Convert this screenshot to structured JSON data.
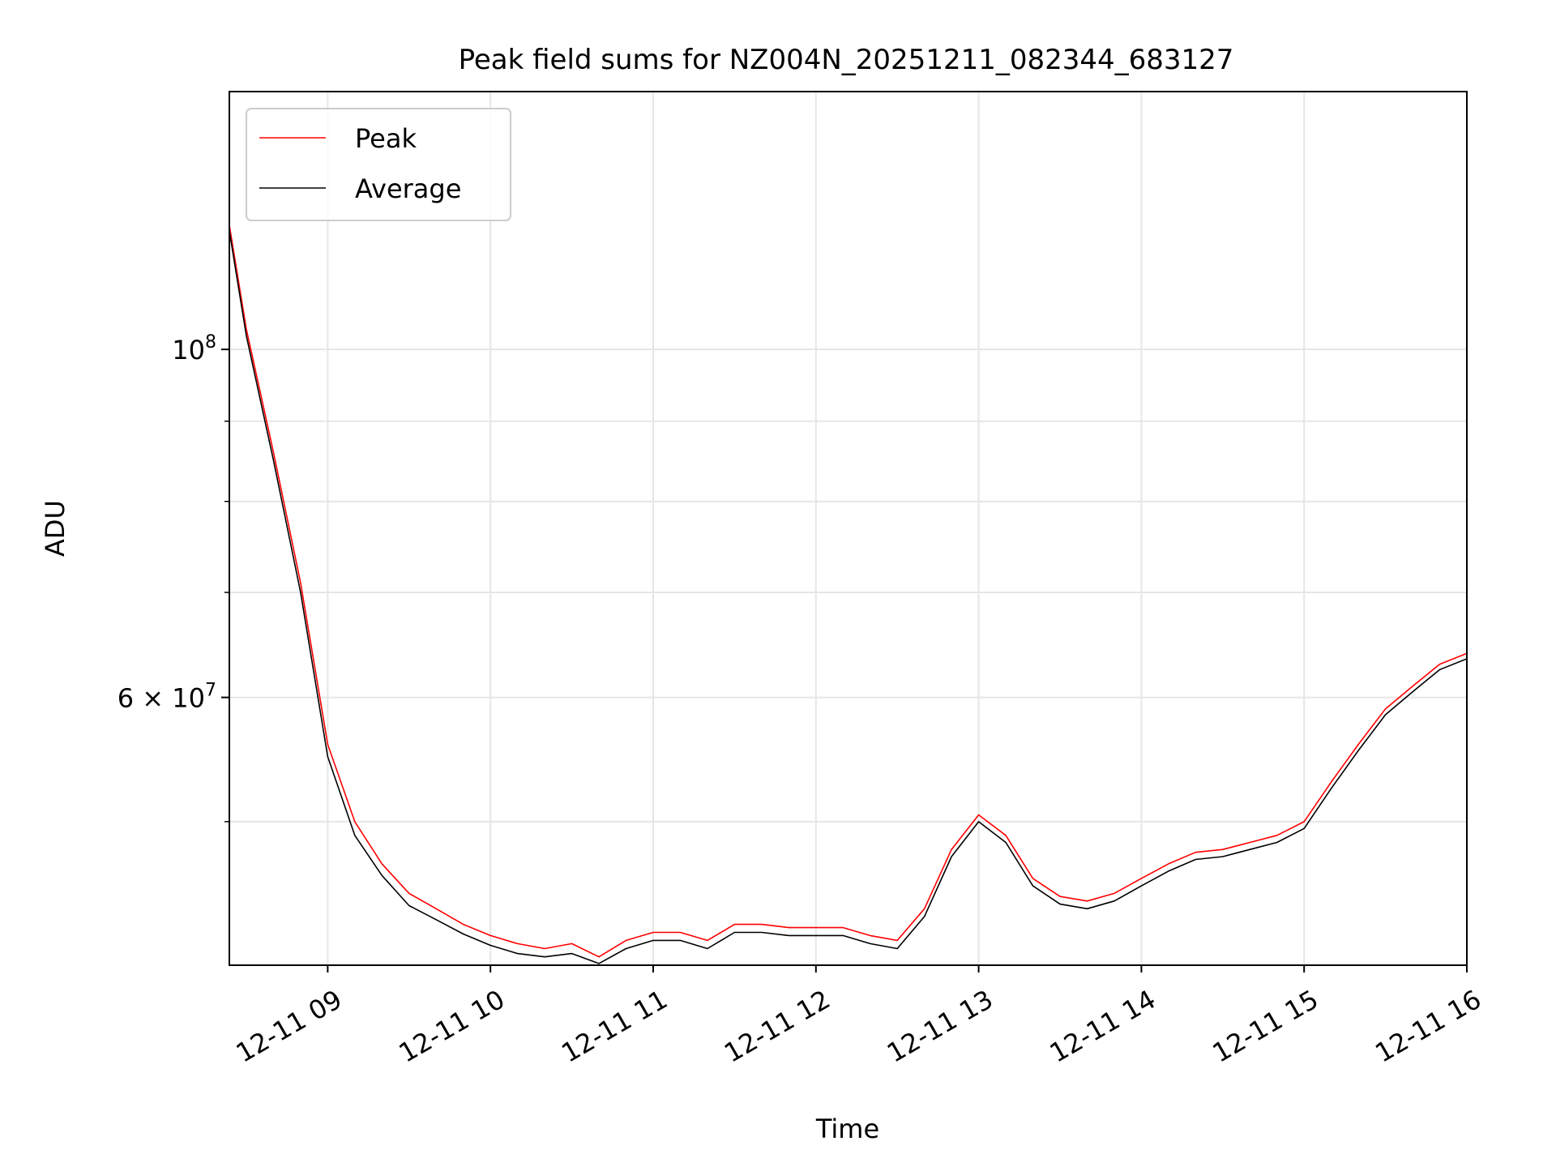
{
  "chart_data": {
    "type": "line",
    "title": "Peak field sums for NZ004N_20251211_082344_683127",
    "xlabel": "Time",
    "ylabel": "ADU",
    "y_scale": "log",
    "ylim": [
      40500000,
      146000000
    ],
    "xlim": [
      "2025-12-11 08:23:44",
      "2025-12-11 16:00:00"
    ],
    "grid": true,
    "legend_position": "top-left",
    "x_ticks": [
      {
        "t": "2025-12-11 09:00",
        "label": "12-11 09"
      },
      {
        "t": "2025-12-11 10:00",
        "label": "12-11 10"
      },
      {
        "t": "2025-12-11 11:00",
        "label": "12-11 11"
      },
      {
        "t": "2025-12-11 12:00",
        "label": "12-11 12"
      },
      {
        "t": "2025-12-11 13:00",
        "label": "12-11 13"
      },
      {
        "t": "2025-12-11 14:00",
        "label": "12-11 14"
      },
      {
        "t": "2025-12-11 15:00",
        "label": "12-11 15"
      },
      {
        "t": "2025-12-11 16:00",
        "label": "12-11 16"
      }
    ],
    "y_major_ticks": [
      {
        "value": 100000000,
        "base": "10",
        "exp": "8"
      },
      {
        "value": 60000000,
        "base": "6 × 10",
        "exp": "7"
      }
    ],
    "y_minor_ticks": [
      50000000,
      70000000,
      80000000,
      90000000
    ],
    "series": [
      {
        "name": "Peak",
        "color": "#ff0000",
        "points": [
          [
            "08:23:44",
            120000000
          ],
          [
            "08:30",
            103000000
          ],
          [
            "08:40",
            86000000
          ],
          [
            "08:50",
            71000000
          ],
          [
            "09:00",
            56000000
          ],
          [
            "09:10",
            50000000
          ],
          [
            "09:20",
            47000000
          ],
          [
            "09:30",
            45000000
          ],
          [
            "09:40",
            44000000
          ],
          [
            "09:50",
            43000000
          ],
          [
            "10:00",
            42300000
          ],
          [
            "10:10",
            41800000
          ],
          [
            "10:20",
            41500000
          ],
          [
            "10:30",
            41800000
          ],
          [
            "10:40",
            41000000
          ],
          [
            "10:50",
            42000000
          ],
          [
            "11:00",
            42500000
          ],
          [
            "11:10",
            42500000
          ],
          [
            "11:20",
            42000000
          ],
          [
            "11:30",
            43000000
          ],
          [
            "11:40",
            43000000
          ],
          [
            "11:50",
            42800000
          ],
          [
            "12:00",
            42800000
          ],
          [
            "12:10",
            42800000
          ],
          [
            "12:20",
            42300000
          ],
          [
            "12:30",
            42000000
          ],
          [
            "12:40",
            44000000
          ],
          [
            "12:50",
            48000000
          ],
          [
            "13:00",
            50500000
          ],
          [
            "13:10",
            49000000
          ],
          [
            "13:20",
            46000000
          ],
          [
            "13:30",
            44800000
          ],
          [
            "13:40",
            44500000
          ],
          [
            "13:50",
            45000000
          ],
          [
            "14:00",
            46000000
          ],
          [
            "14:10",
            47000000
          ],
          [
            "14:20",
            47800000
          ],
          [
            "14:30",
            48000000
          ],
          [
            "14:40",
            48500000
          ],
          [
            "14:50",
            49000000
          ],
          [
            "15:00",
            50000000
          ],
          [
            "15:10",
            53000000
          ],
          [
            "15:20",
            56000000
          ],
          [
            "15:30",
            59000000
          ],
          [
            "15:40",
            61000000
          ],
          [
            "15:50",
            63000000
          ],
          [
            "16:00",
            64000000
          ]
        ]
      },
      {
        "name": "Average",
        "color": "#000000",
        "points": [
          [
            "08:23:44",
            119000000
          ],
          [
            "08:30",
            102000000
          ],
          [
            "08:40",
            85000000
          ],
          [
            "08:50",
            70000000
          ],
          [
            "09:00",
            55000000
          ],
          [
            "09:10",
            49000000
          ],
          [
            "09:20",
            46200000
          ],
          [
            "09:30",
            44200000
          ],
          [
            "09:40",
            43300000
          ],
          [
            "09:50",
            42400000
          ],
          [
            "10:00",
            41700000
          ],
          [
            "10:10",
            41200000
          ],
          [
            "10:20",
            41000000
          ],
          [
            "10:30",
            41200000
          ],
          [
            "10:40",
            40600000
          ],
          [
            "10:50",
            41500000
          ],
          [
            "11:00",
            42000000
          ],
          [
            "11:10",
            42000000
          ],
          [
            "11:20",
            41500000
          ],
          [
            "11:30",
            42500000
          ],
          [
            "11:40",
            42500000
          ],
          [
            "11:50",
            42300000
          ],
          [
            "12:00",
            42300000
          ],
          [
            "12:10",
            42300000
          ],
          [
            "12:20",
            41800000
          ],
          [
            "12:30",
            41500000
          ],
          [
            "12:40",
            43500000
          ],
          [
            "12:50",
            47500000
          ],
          [
            "13:00",
            50000000
          ],
          [
            "13:10",
            48500000
          ],
          [
            "13:20",
            45500000
          ],
          [
            "13:30",
            44300000
          ],
          [
            "13:40",
            44000000
          ],
          [
            "13:50",
            44500000
          ],
          [
            "14:00",
            45500000
          ],
          [
            "14:10",
            46500000
          ],
          [
            "14:20",
            47300000
          ],
          [
            "14:30",
            47500000
          ],
          [
            "14:40",
            48000000
          ],
          [
            "14:50",
            48500000
          ],
          [
            "15:00",
            49500000
          ],
          [
            "15:10",
            52500000
          ],
          [
            "15:20",
            55500000
          ],
          [
            "15:30",
            58500000
          ],
          [
            "15:40",
            60500000
          ],
          [
            "15:50",
            62500000
          ],
          [
            "16:00",
            63500000
          ]
        ]
      }
    ]
  }
}
